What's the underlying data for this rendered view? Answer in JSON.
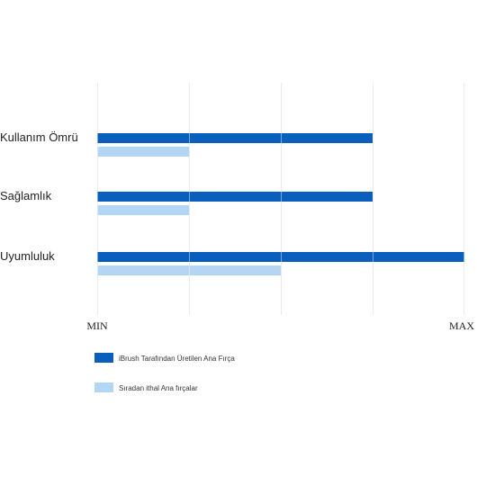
{
  "chart_data": {
    "type": "bar",
    "orientation": "horizontal",
    "categories": [
      "Kullanım Ömrü",
      "Sağlamlık",
      "Uyumluluk"
    ],
    "series": [
      {
        "name": "iBrush Tarafından Üretilen Ana Fırça",
        "color": "#0a5fbd",
        "values": [
          3,
          3,
          4
        ]
      },
      {
        "name": "Sıradan ithal Ana fırçalar",
        "color": "#b3d6f5",
        "values": [
          1,
          1,
          2
        ]
      }
    ],
    "xlim": [
      0,
      4
    ],
    "x_tick_labels": {
      "min": "MIN",
      "max": "MAX"
    },
    "grid": "vertical",
    "grid_color": "#d9d9d9",
    "legend_position": "bottom-left"
  }
}
